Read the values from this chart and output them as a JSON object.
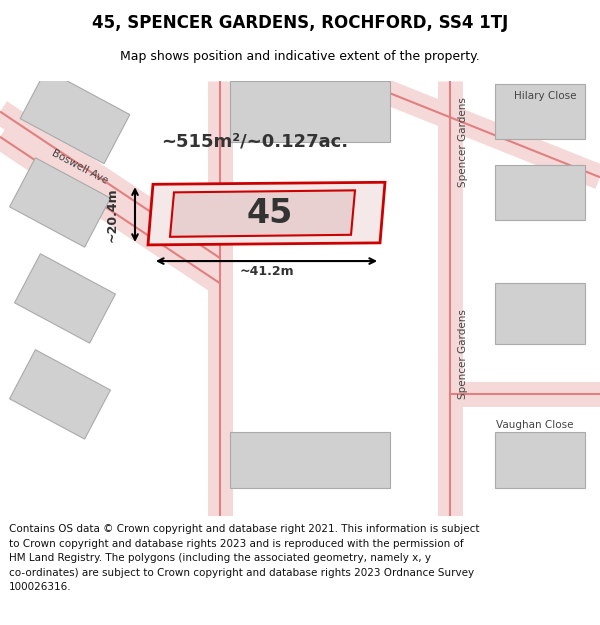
{
  "title": "45, SPENCER GARDENS, ROCHFORD, SS4 1TJ",
  "subtitle": "Map shows position and indicative extent of the property.",
  "footer_line1": "Contains OS data © Crown copyright and database right 2021. This information is subject",
  "footer_line2": "to Crown copyright and database rights 2023 and is reproduced with the permission of",
  "footer_line3": "HM Land Registry. The polygons (including the associated geometry, namely x, y",
  "footer_line4": "co-ordinates) are subject to Crown copyright and database rights 2023 Ordnance Survey",
  "footer_line5": "100026316.",
  "map_bg": "#f0f0f0",
  "road_color": "#e08080",
  "building_color": "#d0d0d0",
  "building_outline": "#aaaaaa",
  "highlight_color": "#cc0000",
  "area_text": "~515m²/~0.127ac.",
  "property_label": "45",
  "dim_width": "~41.2m",
  "dim_height": "~20.4m",
  "street_label_spencer1": "Spencer Gardens",
  "street_label_spencer2": "Spencer Gardens",
  "street_label_boswell": "Boswell Ave",
  "street_label_hilary": "Hilary Close",
  "street_label_vaughan": "Vaughan Close"
}
